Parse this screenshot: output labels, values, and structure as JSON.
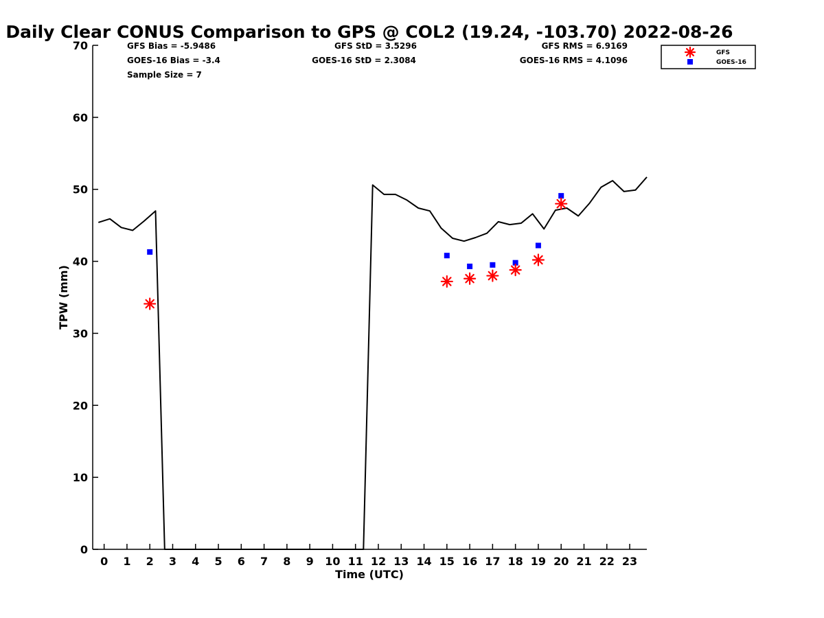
{
  "chart_data": {
    "type": "line",
    "title": "Daily Clear CONUS Comparison to GPS @ COL2 (19.24, -103.70) 2022-08-26",
    "xlabel": "Time (UTC)",
    "ylabel": "TPW (mm)",
    "xlim": [
      -0.5,
      23.75
    ],
    "ylim": [
      0,
      70
    ],
    "xticks": [
      "0",
      "1",
      "2",
      "3",
      "4",
      "5",
      "6",
      "7",
      "8",
      "9",
      "10",
      "11",
      "12",
      "13",
      "14",
      "15",
      "16",
      "17",
      "18",
      "19",
      "20",
      "21",
      "22",
      "23"
    ],
    "yticks": [
      "0",
      "10",
      "20",
      "30",
      "40",
      "50",
      "60",
      "70"
    ],
    "grid": false,
    "legend_position": "top-right",
    "stats": {
      "gfs_bias": "GFS Bias = -5.9486",
      "goes_bias": "GOES-16 Bias = -3.4",
      "sample_size": "Sample Size = 7",
      "gfs_std": "GFS StD = 3.5296",
      "goes_std": "GOES-16 StD = 2.3084",
      "gfs_rms": "GFS RMS = 6.9169",
      "goes_rms": "GOES-16 RMS = 4.1096"
    },
    "series": [
      {
        "type": "line",
        "color": "#000000",
        "x": [
          -0.25,
          0.25,
          0.75,
          1.25,
          1.75,
          2.25,
          2.65,
          11.35,
          11.75,
          12.25,
          12.75,
          13.25,
          13.75,
          14.25,
          14.75,
          15.25,
          15.75,
          16.25,
          16.75,
          17.25,
          17.75,
          18.25,
          18.75,
          19.25,
          19.75,
          20.25,
          20.75,
          21.25,
          21.75,
          22.25,
          22.75,
          23.25,
          23.75
        ],
        "y": [
          45.4,
          45.9,
          44.7,
          44.3,
          45.6,
          47.0,
          0,
          0,
          50.6,
          49.3,
          49.3,
          48.5,
          47.4,
          47.0,
          44.6,
          43.2,
          42.8,
          43.3,
          43.9,
          45.5,
          45.1,
          45.3,
          46.6,
          44.5,
          47.1,
          47.4,
          46.3,
          48.1,
          50.3,
          51.2,
          49.7,
          49.9,
          51.7
        ]
      },
      {
        "name": "GFS",
        "type": "scatter",
        "marker": "asterisk",
        "color": "#ff0000",
        "x": [
          2,
          15,
          16,
          17,
          18,
          19,
          20
        ],
        "y": [
          34.1,
          37.2,
          37.6,
          38.0,
          38.8,
          40.2,
          48.0
        ]
      },
      {
        "name": "GOES-16",
        "type": "scatter",
        "marker": "square",
        "color": "#0000ff",
        "x": [
          2,
          15,
          16,
          17,
          18,
          19,
          20
        ],
        "y": [
          41.3,
          40.8,
          39.3,
          39.5,
          39.8,
          42.2,
          49.1
        ]
      }
    ]
  }
}
